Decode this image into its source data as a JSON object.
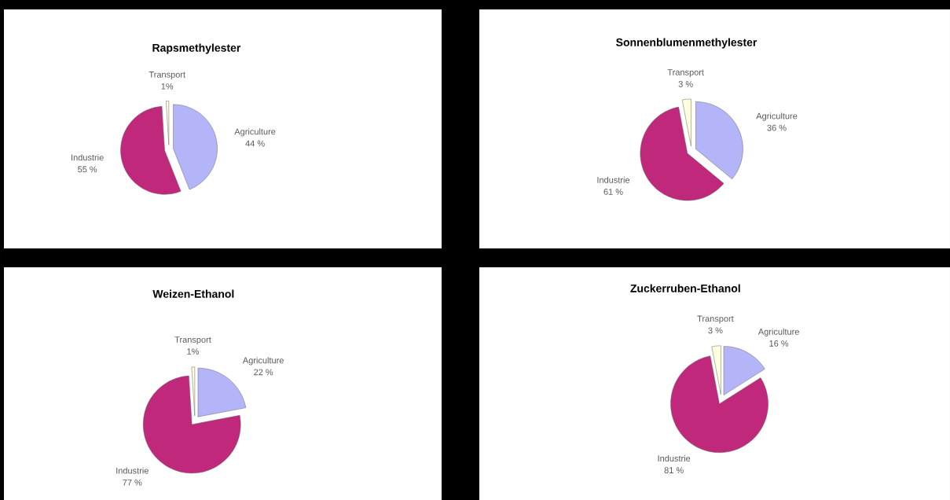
{
  "chart_data": [
    {
      "type": "pie",
      "title": "Rapsmethylester",
      "categories": [
        "Agriculture",
        "Industrie",
        "Transport"
      ],
      "values": [
        44,
        55,
        1
      ],
      "colors": [
        "#b4b4f8",
        "#c0287c",
        "#ffffe0"
      ],
      "value_labels": [
        "44 %",
        "55 %",
        "1%"
      ]
    },
    {
      "type": "pie",
      "title": "Sonnenblumenmethylester",
      "categories": [
        "Agriculture",
        "Industrie",
        "Transport"
      ],
      "values": [
        36,
        61,
        3
      ],
      "colors": [
        "#b4b4f8",
        "#c0287c",
        "#ffffe0"
      ],
      "value_labels": [
        "36 %",
        "61 %",
        "3 %"
      ]
    },
    {
      "type": "pie",
      "title": "Weizen-Ethanol",
      "categories": [
        "Agriculture",
        "Industrie",
        "Transport"
      ],
      "values": [
        22,
        77,
        1
      ],
      "colors": [
        "#b4b4f8",
        "#c0287c",
        "#ffffe0"
      ],
      "value_labels": [
        "22 %",
        "77 %",
        "1%"
      ]
    },
    {
      "type": "pie",
      "title": "Zuckerruben-Ethanol",
      "categories": [
        "Agriculture",
        "Industrie",
        "Transport"
      ],
      "values": [
        16,
        81,
        3
      ],
      "colors": [
        "#b4b4f8",
        "#c0287c",
        "#ffffe0"
      ],
      "value_labels": [
        "16 %",
        "81 %",
        "3 %"
      ]
    }
  ]
}
